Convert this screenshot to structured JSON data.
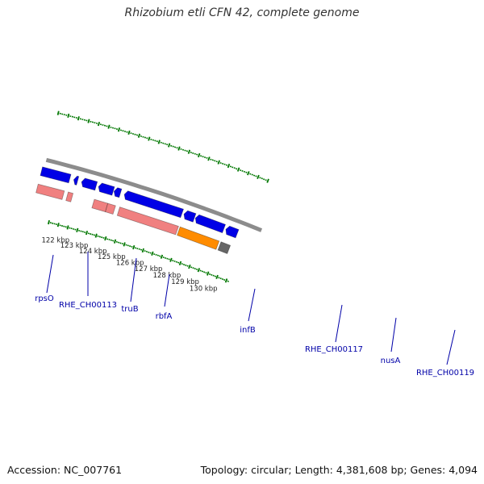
{
  "title": "Rhizobium etli CFN 42, complete genome",
  "footer": {
    "accession": "Accession: NC_007761",
    "summary": "Topology: circular; Length: 4,381,608 bp; Genes: 4,094"
  },
  "colors": {
    "background": "#ffffff",
    "backbone": "#8c8c8c",
    "cds_forward": "#0000e6",
    "cds_reverse": "#f08080",
    "gene_orange": "#ff8c00",
    "gene_gray": "#666666",
    "tick": "#007700",
    "label": "#0000a8"
  },
  "view": {
    "start_kbp": 121.4,
    "end_kbp": 130.9
  },
  "scale_ticks": [
    "122 kbp",
    "123 kbp",
    "124 kbp",
    "125 kbp",
    "126 kbp",
    "127 kbp",
    "128 kbp",
    "129 kbp",
    "130 kbp"
  ],
  "gene_labels": [
    {
      "id": "rpsO",
      "label": "rpsO"
    },
    {
      "id": "RHE_CH00113",
      "label": "RHE_CH00113"
    },
    {
      "id": "truB",
      "label": "truB"
    },
    {
      "id": "rbfA",
      "label": "rbfA"
    },
    {
      "id": "infB",
      "label": "infB"
    },
    {
      "id": "RHE_CH00117",
      "label": "RHE_CH00117"
    },
    {
      "id": "nusA",
      "label": "nusA"
    },
    {
      "id": "RHE_CH00119",
      "label": "RHE_CH00119"
    }
  ]
}
